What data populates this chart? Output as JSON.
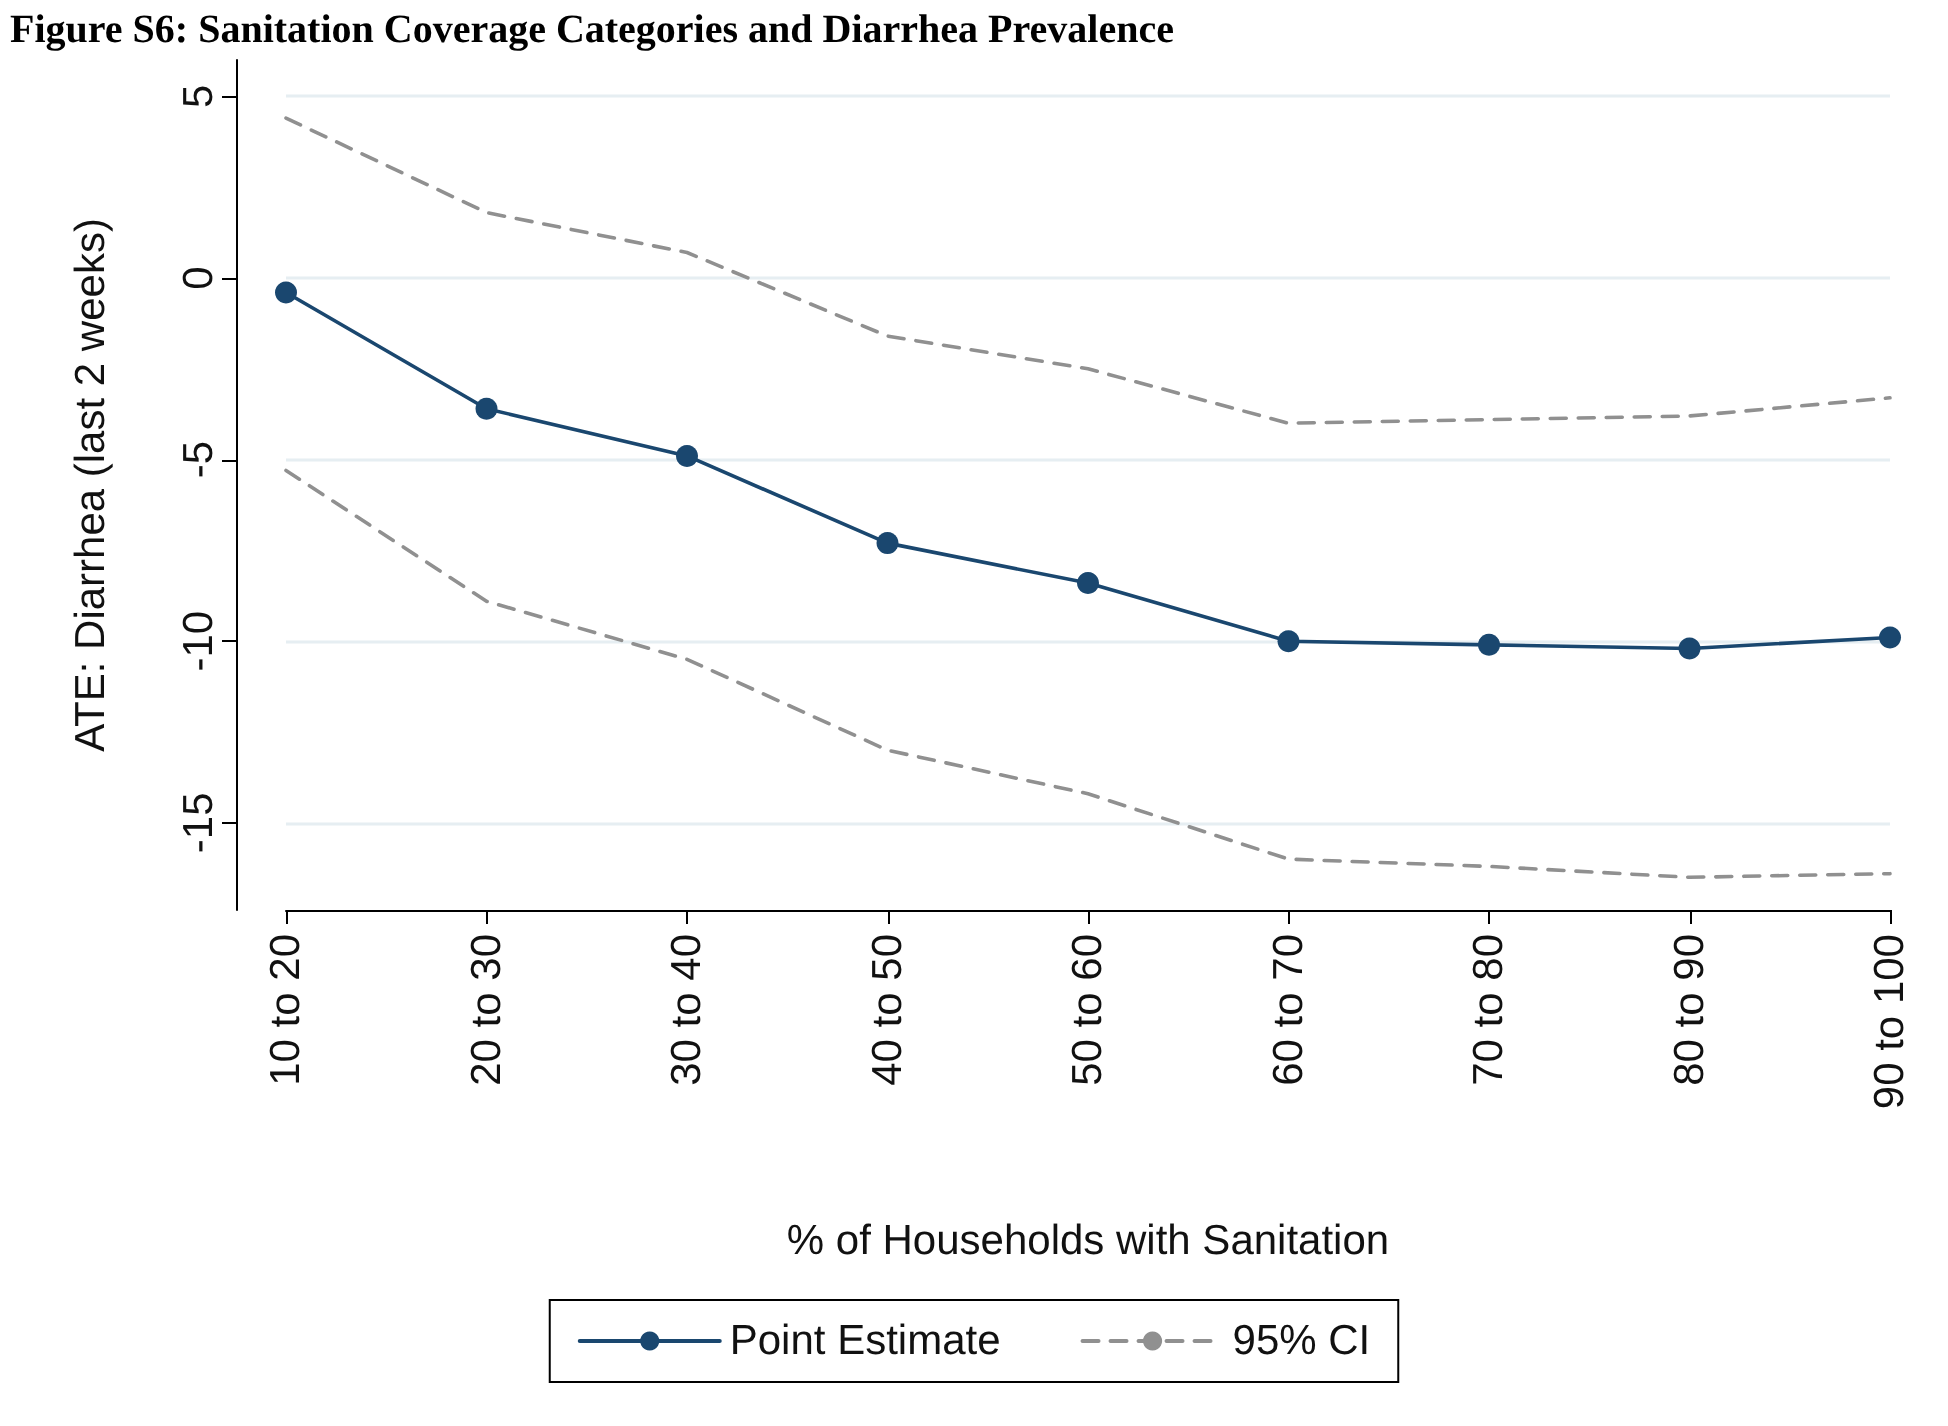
{
  "chart_data": {
    "type": "line",
    "title": "Figure S6: Sanitation Coverage Categories and Diarrhea Prevalence",
    "xlabel": "% of Households with Sanitation",
    "ylabel": "ATE: Diarrhea (last 2 weeks)",
    "categories": [
      "10 to 20",
      "20 to 30",
      "30 to 40",
      "40 to 50",
      "50 to 60",
      "60 to 70",
      "70 to 80",
      "80 to 90",
      "90 to 100"
    ],
    "series": [
      {
        "name": "Point Estimate",
        "color": "#1a476f",
        "marker": "circle",
        "line_style": "solid",
        "values": [
          -0.4,
          -3.6,
          -4.9,
          -7.3,
          -8.4,
          -10.0,
          -10.1,
          -10.2,
          -9.9
        ]
      },
      {
        "name": "95% CI",
        "color": "#909090",
        "marker": "none",
        "line_style": "dashed",
        "values": [
          4.4,
          1.8,
          0.7,
          -1.6,
          -2.5,
          -4.0,
          -3.9,
          -3.8,
          -3.3
        ]
      },
      {
        "color": "#909090",
        "marker": "none",
        "line_style": "dashed",
        "values": [
          -5.3,
          -8.9,
          -10.5,
          -13.0,
          -14.2,
          -16.0,
          -16.2,
          -16.5,
          -16.4
        ]
      }
    ],
    "ylim": [
      -17.4,
      6
    ],
    "yticks": [
      -15,
      -10,
      -5,
      0,
      5
    ],
    "grid": "y",
    "legend": "bottom"
  }
}
